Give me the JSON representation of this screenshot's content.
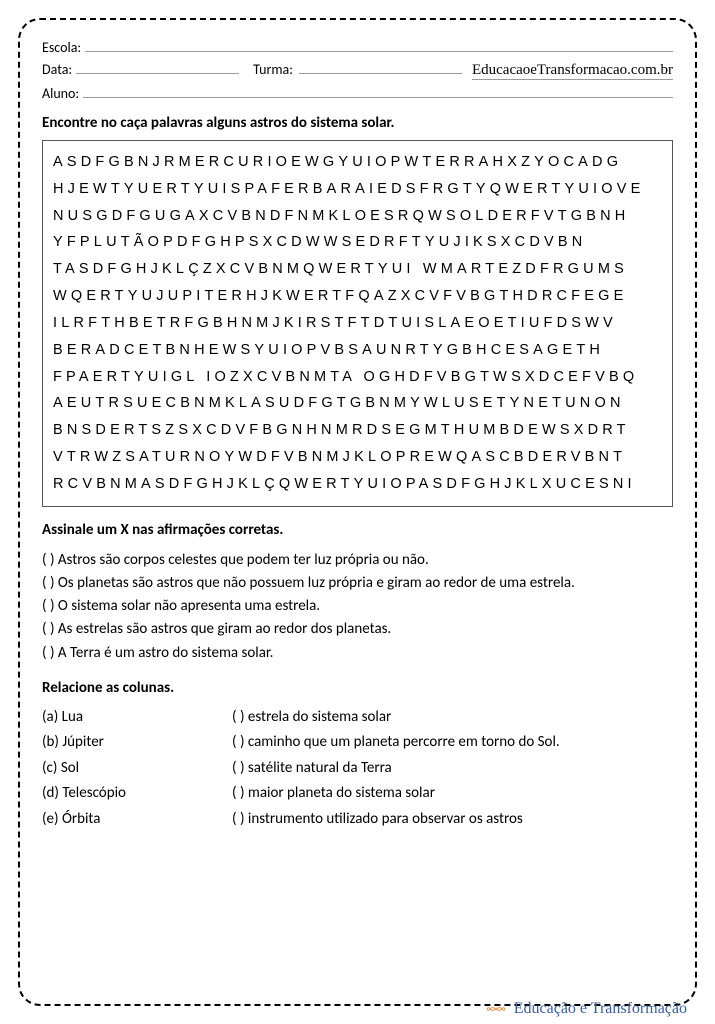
{
  "header": {
    "escola_label": "Escola:",
    "data_label": "Data:",
    "turma_label": "Turma:",
    "aluno_label": "Aluno:",
    "website": "EducacaoeTransformacao.com.br"
  },
  "activity1": {
    "title": "Encontre no caça palavras alguns astros do sistema solar.",
    "rows": [
      "ASDFGBNJRMERCURIOEWGYUIOPWTERRAHXZYOCADG",
      "HJEWTYUERTYUISPAFERBARAIEDSFRGTYQWERTYUIOVE",
      "NUSGDFGUGAXCVBNDFNMKLOESRQWSOLDERFVTGBNH",
      "YFPLUTÃOPDFGHPSXCDWWSEDRFTYUJIKSXCDVBN",
      "TASDFGHJKLÇZXCVBNMQWERTYUI WMARTEZDFRGUMS",
      "WQERTYUJUPITERHJKWERTFQAZXCVFVBGTHDRCFEGE",
      "ILRFTHBETRFGBHNMJKIRSTFTDTUISLAEOETIUFDSWV",
      "BERADCETBNHEWSYUIOPVBSAUNRTYGBHCESAGETH",
      "FPAERTYUIGL IOZXCVBNMTA OGHDFVBGTWSXDCEFVBQ",
      "AEUTRSUECBNMKLASUDFGTGBNMYWLUSETYNETUNON",
      "BNSDERTSZSXCDVFBGNHNMRDSEGMTHUMBDEWSXDRT",
      "VTRWZSATURNOYWDFVBNMJKLOPREWQASCBDERVBNT",
      "RCVBNMASDFGHJKLÇQWERTYUIOPASDFGHJKLXUCESNI"
    ]
  },
  "activity2": {
    "title": "Assinale um X nas afirmações corretas.",
    "items": [
      "(  ) Astros são corpos celestes que podem ter luz própria ou não.",
      "(  ) Os planetas são astros que não possuem luz própria e giram ao redor de uma estrela.",
      "(  ) O sistema solar não apresenta uma estrela.",
      "(  ) As estrelas são astros que giram ao redor dos planetas.",
      "(  ) A Terra é um astro do sistema solar."
    ]
  },
  "activity3": {
    "title": "Relacione as colunas.",
    "left": [
      "(a) Lua",
      "(b) Júpiter",
      "(c) Sol",
      "(d) Telescópio",
      "(e) Órbita"
    ],
    "right": [
      "(   )  estrela do sistema solar",
      "(   )  caminho que um planeta percorre em torno do Sol.",
      "(   )  satélite natural da Terra",
      "(   )  maior planeta do sistema solar",
      "(   )  instrumento utilizado para observar os astros"
    ]
  },
  "footer": {
    "brand": "Educação e Transformação"
  }
}
